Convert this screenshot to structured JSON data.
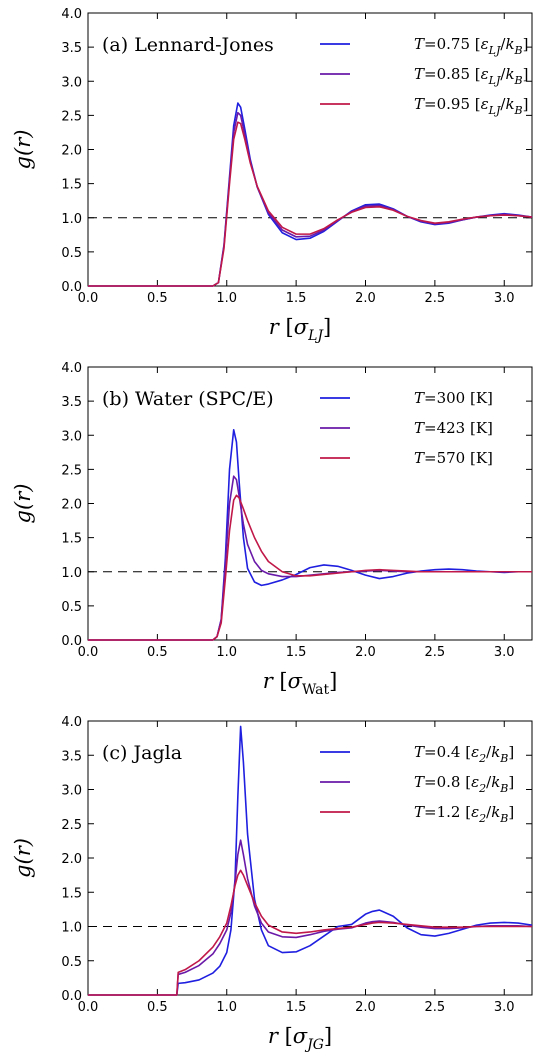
{
  "chart_data": [
    {
      "type": "line",
      "panel_label": "(a) Lennard-Jones",
      "xlabel": "r",
      "xlabel_unit": "[σLJ]",
      "ylabel": "g(r)",
      "xlim": [
        0.0,
        3.2
      ],
      "ylim": [
        0.0,
        4.0
      ],
      "xticks": [
        "0.0",
        "0.5",
        "1.0",
        "1.5",
        "2.0",
        "2.5",
        "3.0"
      ],
      "yticks": [
        "0.0",
        "0.5",
        "1.0",
        "1.5",
        "2.0",
        "2.5",
        "3.0",
        "3.5",
        "4.0"
      ],
      "reference_line_y": 1.0,
      "legend_position": "top-right",
      "series": [
        {
          "name": "T=0.75 [εLJ/kB]",
          "color": "#1f1fe0",
          "x": [
            0.0,
            0.9,
            0.94,
            0.98,
            1.02,
            1.05,
            1.08,
            1.1,
            1.13,
            1.17,
            1.22,
            1.3,
            1.4,
            1.5,
            1.6,
            1.7,
            1.8,
            1.9,
            2.0,
            2.1,
            2.2,
            2.3,
            2.4,
            2.5,
            2.6,
            2.7,
            2.8,
            2.9,
            3.0,
            3.1,
            3.2
          ],
          "y": [
            0.0,
            0.0,
            0.05,
            0.6,
            1.6,
            2.35,
            2.68,
            2.62,
            2.3,
            1.85,
            1.45,
            1.05,
            0.78,
            0.68,
            0.7,
            0.8,
            0.95,
            1.1,
            1.19,
            1.2,
            1.13,
            1.02,
            0.94,
            0.9,
            0.92,
            0.97,
            1.01,
            1.04,
            1.06,
            1.04,
            1.01
          ]
        },
        {
          "name": "T=0.85 [εLJ/kB]",
          "color": "#6a1aa8",
          "x": [
            0.0,
            0.9,
            0.94,
            0.98,
            1.02,
            1.05,
            1.08,
            1.1,
            1.13,
            1.17,
            1.22,
            1.3,
            1.4,
            1.5,
            1.6,
            1.7,
            1.8,
            1.9,
            2.0,
            2.1,
            2.2,
            2.3,
            2.4,
            2.5,
            2.6,
            2.7,
            2.8,
            2.9,
            3.0,
            3.1,
            3.2
          ],
          "y": [
            0.0,
            0.0,
            0.05,
            0.58,
            1.55,
            2.25,
            2.54,
            2.5,
            2.22,
            1.82,
            1.45,
            1.07,
            0.82,
            0.72,
            0.73,
            0.82,
            0.96,
            1.09,
            1.17,
            1.18,
            1.12,
            1.02,
            0.95,
            0.91,
            0.93,
            0.97,
            1.01,
            1.03,
            1.05,
            1.03,
            1.01
          ]
        },
        {
          "name": "T=0.95 [εLJ/kB]",
          "color": "#c01848",
          "x": [
            0.0,
            0.9,
            0.94,
            0.98,
            1.02,
            1.05,
            1.08,
            1.1,
            1.13,
            1.17,
            1.22,
            1.3,
            1.4,
            1.5,
            1.6,
            1.7,
            1.8,
            1.9,
            2.0,
            2.1,
            2.2,
            2.3,
            2.4,
            2.5,
            2.6,
            2.7,
            2.8,
            2.9,
            3.0,
            3.1,
            3.2
          ],
          "y": [
            0.0,
            0.0,
            0.05,
            0.55,
            1.5,
            2.15,
            2.4,
            2.38,
            2.15,
            1.8,
            1.46,
            1.1,
            0.86,
            0.76,
            0.76,
            0.84,
            0.97,
            1.08,
            1.15,
            1.16,
            1.11,
            1.02,
            0.96,
            0.92,
            0.94,
            0.98,
            1.01,
            1.03,
            1.04,
            1.03,
            1.01
          ]
        }
      ]
    },
    {
      "type": "line",
      "panel_label": "(b) Water (SPC/E)",
      "xlabel": "r",
      "xlabel_unit": "[σWat]",
      "ylabel": "g(r)",
      "xlim": [
        0.0,
        3.2
      ],
      "ylim": [
        0.0,
        4.0
      ],
      "xticks": [
        "0.0",
        "0.5",
        "1.0",
        "1.5",
        "2.0",
        "2.5",
        "3.0"
      ],
      "yticks": [
        "0.0",
        "0.5",
        "1.0",
        "1.5",
        "2.0",
        "2.5",
        "3.0",
        "3.5",
        "4.0"
      ],
      "reference_line_y": 1.0,
      "legend_position": "top-right",
      "series": [
        {
          "name": "T=300 [K]",
          "color": "#1f1fe0",
          "x": [
            0.0,
            0.9,
            0.93,
            0.96,
            0.99,
            1.02,
            1.05,
            1.07,
            1.09,
            1.12,
            1.15,
            1.2,
            1.25,
            1.3,
            1.4,
            1.5,
            1.6,
            1.7,
            1.8,
            1.9,
            2.0,
            2.1,
            2.2,
            2.3,
            2.4,
            2.5,
            2.6,
            2.7,
            2.8,
            2.9,
            3.0,
            3.1,
            3.2
          ],
          "y": [
            0.0,
            0.0,
            0.05,
            0.3,
            1.2,
            2.5,
            3.08,
            2.9,
            2.3,
            1.5,
            1.05,
            0.85,
            0.8,
            0.82,
            0.88,
            0.96,
            1.06,
            1.1,
            1.08,
            1.02,
            0.95,
            0.9,
            0.93,
            0.98,
            1.01,
            1.03,
            1.04,
            1.03,
            1.01,
            1.0,
            0.99,
            1.0,
            1.0
          ]
        },
        {
          "name": "T=423 [K]",
          "color": "#6a1aa8",
          "x": [
            0.0,
            0.9,
            0.93,
            0.96,
            0.99,
            1.02,
            1.05,
            1.07,
            1.09,
            1.12,
            1.15,
            1.2,
            1.25,
            1.3,
            1.4,
            1.5,
            1.6,
            1.7,
            1.8,
            1.9,
            2.0,
            2.1,
            2.2,
            2.3,
            2.4,
            2.5,
            2.6,
            2.7,
            2.8,
            2.9,
            3.0,
            3.1,
            3.2
          ],
          "y": [
            0.0,
            0.0,
            0.05,
            0.3,
            1.1,
            2.0,
            2.4,
            2.35,
            2.1,
            1.7,
            1.4,
            1.15,
            1.02,
            0.97,
            0.93,
            0.93,
            0.95,
            0.97,
            0.99,
            1.0,
            1.01,
            1.02,
            1.01,
            1.0,
            1.0,
            1.0,
            1.0,
            1.0,
            1.0,
            1.0,
            1.0,
            1.0,
            1.0
          ]
        },
        {
          "name": "T=570 [K]",
          "color": "#c01848",
          "x": [
            0.0,
            0.9,
            0.93,
            0.96,
            0.99,
            1.02,
            1.05,
            1.07,
            1.09,
            1.12,
            1.15,
            1.2,
            1.25,
            1.3,
            1.4,
            1.5,
            1.6,
            1.7,
            1.8,
            1.9,
            2.0,
            2.1,
            2.2,
            2.3,
            2.4,
            2.5,
            2.6,
            2.7,
            2.8,
            2.9,
            3.0,
            3.1,
            3.2
          ],
          "y": [
            0.0,
            0.0,
            0.05,
            0.25,
            0.9,
            1.6,
            2.05,
            2.12,
            2.08,
            1.92,
            1.75,
            1.5,
            1.3,
            1.15,
            1.0,
            0.94,
            0.94,
            0.96,
            0.98,
            1.0,
            1.02,
            1.03,
            1.02,
            1.01,
            1.0,
            1.0,
            1.0,
            1.0,
            1.0,
            1.0,
            1.0,
            1.0,
            1.0
          ]
        }
      ]
    },
    {
      "type": "line",
      "panel_label": "(c) Jagla",
      "xlabel": "r",
      "xlabel_unit": "[σJG]",
      "ylabel": "g(r)",
      "xlim": [
        0.0,
        3.2
      ],
      "ylim": [
        0.0,
        4.0
      ],
      "xticks": [
        "0.0",
        "0.5",
        "1.0",
        "1.5",
        "2.0",
        "2.5",
        "3.0"
      ],
      "yticks": [
        "0.0",
        "0.5",
        "1.0",
        "1.5",
        "2.0",
        "2.5",
        "3.0",
        "3.5",
        "4.0"
      ],
      "reference_line_y": 1.0,
      "legend_position": "top-right",
      "series": [
        {
          "name": "T=0.4 [ε2/kB]",
          "color": "#1f1fe0",
          "x": [
            0.0,
            0.64,
            0.65,
            0.7,
            0.8,
            0.9,
            0.95,
            1.0,
            1.03,
            1.06,
            1.08,
            1.1,
            1.12,
            1.15,
            1.2,
            1.25,
            1.3,
            1.4,
            1.5,
            1.6,
            1.7,
            1.8,
            1.9,
            2.0,
            2.05,
            2.1,
            2.2,
            2.3,
            2.4,
            2.5,
            2.6,
            2.7,
            2.8,
            2.9,
            3.0,
            3.1,
            3.2
          ],
          "y": [
            0.0,
            0.0,
            0.17,
            0.18,
            0.22,
            0.32,
            0.42,
            0.62,
            0.95,
            1.7,
            2.9,
            3.92,
            3.4,
            2.35,
            1.4,
            0.95,
            0.72,
            0.62,
            0.63,
            0.72,
            0.86,
            1.0,
            1.03,
            1.18,
            1.22,
            1.24,
            1.15,
            0.98,
            0.88,
            0.86,
            0.9,
            0.96,
            1.02,
            1.05,
            1.06,
            1.05,
            1.02
          ]
        },
        {
          "name": "T=0.8 [ε2/kB]",
          "color": "#6a1aa8",
          "x": [
            0.0,
            0.64,
            0.65,
            0.7,
            0.8,
            0.9,
            0.95,
            1.0,
            1.03,
            1.06,
            1.08,
            1.1,
            1.12,
            1.15,
            1.2,
            1.25,
            1.3,
            1.4,
            1.5,
            1.6,
            1.7,
            1.8,
            1.9,
            2.0,
            2.05,
            2.1,
            2.2,
            2.3,
            2.4,
            2.5,
            2.6,
            2.7,
            2.8,
            2.9,
            3.0,
            3.1,
            3.2
          ],
          "y": [
            0.0,
            0.0,
            0.3,
            0.33,
            0.43,
            0.6,
            0.75,
            0.95,
            1.2,
            1.65,
            2.05,
            2.26,
            2.05,
            1.7,
            1.3,
            1.05,
            0.92,
            0.85,
            0.84,
            0.88,
            0.93,
            0.96,
            0.98,
            1.05,
            1.07,
            1.08,
            1.06,
            1.02,
            0.99,
            0.97,
            0.97,
            0.98,
            1.0,
            1.01,
            1.01,
            1.01,
            1.0
          ]
        },
        {
          "name": "T=1.2 [ε2/kB]",
          "color": "#c01848",
          "x": [
            0.0,
            0.64,
            0.65,
            0.7,
            0.8,
            0.9,
            0.95,
            1.0,
            1.03,
            1.06,
            1.08,
            1.1,
            1.12,
            1.15,
            1.2,
            1.25,
            1.3,
            1.4,
            1.5,
            1.6,
            1.7,
            1.8,
            1.9,
            2.0,
            2.05,
            2.1,
            2.2,
            2.3,
            2.4,
            2.5,
            2.6,
            2.7,
            2.8,
            2.9,
            3.0,
            3.1,
            3.2
          ],
          "y": [
            0.0,
            0.0,
            0.33,
            0.37,
            0.5,
            0.7,
            0.85,
            1.05,
            1.3,
            1.6,
            1.75,
            1.82,
            1.75,
            1.6,
            1.35,
            1.15,
            1.02,
            0.92,
            0.9,
            0.92,
            0.95,
            0.97,
            0.99,
            1.03,
            1.05,
            1.06,
            1.05,
            1.03,
            1.01,
            0.99,
            0.99,
            0.99,
            1.0,
            1.0,
            1.0,
            1.0,
            1.0
          ]
        }
      ]
    }
  ]
}
